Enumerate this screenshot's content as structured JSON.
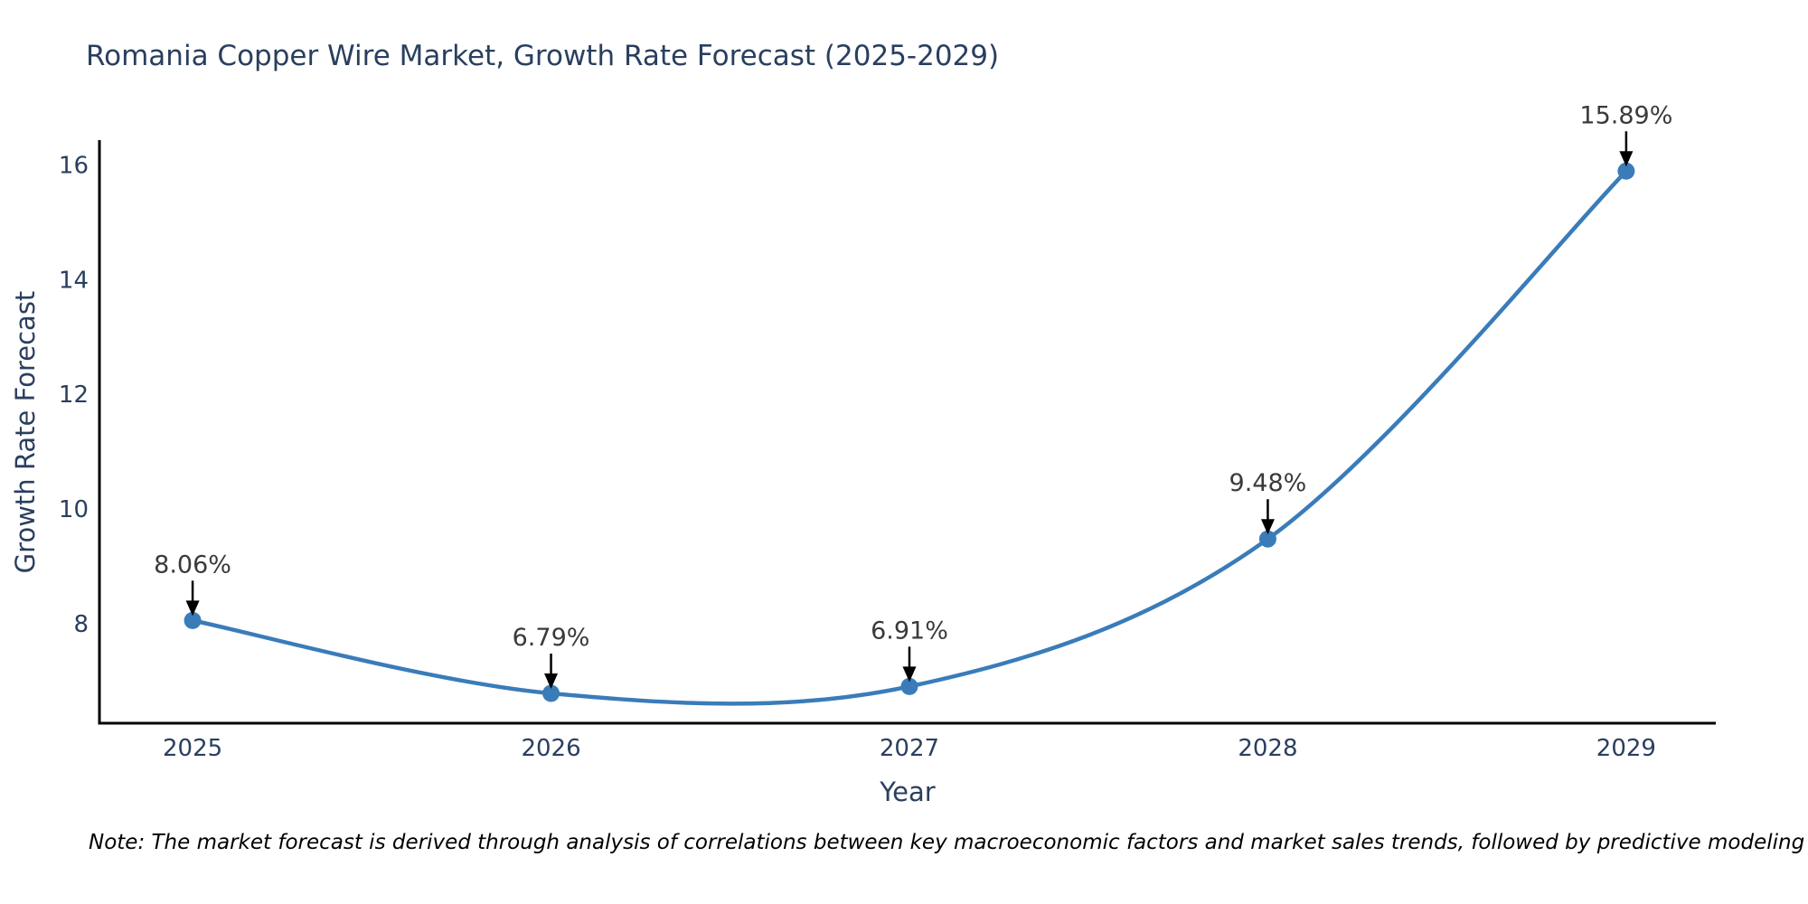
{
  "title": "Romania Copper Wire Market, Growth Rate Forecast (2025-2029)",
  "note": "Note: The market forecast is derived through analysis of correlations between key macroeconomic factors and market sales trends, followed by predictive modeling to project future sales",
  "chart_data": {
    "type": "line",
    "title": "Romania Copper Wire Market, Growth Rate Forecast (2025-2029)",
    "x": [
      2025,
      2026,
      2027,
      2028,
      2029
    ],
    "series": [
      {
        "name": "Growth Rate Forecast",
        "values": [
          8.06,
          6.79,
          6.91,
          9.48,
          15.89
        ]
      }
    ],
    "point_labels": [
      "8.06%",
      "6.79%",
      "6.91%",
      "9.48%",
      "15.89%"
    ],
    "xlabel": "Year",
    "ylabel": "Growth Rate Forecast",
    "x_tick_labels": [
      "2025",
      "2026",
      "2027",
      "2028",
      "2029"
    ],
    "x_tick_values": [
      2025,
      2026,
      2027,
      2028,
      2029
    ],
    "y_tick_labels": [
      "8",
      "10",
      "12",
      "14",
      "16"
    ],
    "y_tick_values": [
      8,
      10,
      12,
      14,
      16
    ],
    "xlim": [
      2024.74,
      2029.25
    ],
    "ylim": [
      6.27,
      16.43
    ],
    "line_shape": "spline",
    "grid": false,
    "legend_position": "none",
    "colors": {
      "line": "#3a7cb9",
      "marker": "#3a7cb9",
      "axis_line": "#000000",
      "tick_text": "#2a3f5f",
      "annotation_text": "#3a3a3a",
      "annotation_arrow": "#000000",
      "title_text": "#2a3f5f"
    }
  }
}
